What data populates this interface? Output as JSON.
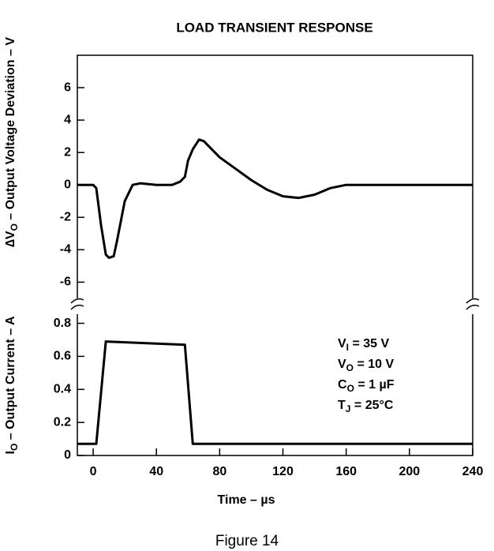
{
  "caption": "Figure 14",
  "chart_data": [
    {
      "type": "line",
      "title": "LOAD TRANSIENT RESPONSE",
      "y_label": [
        "∆V",
        "O",
        " – Output Voltage Deviation – V"
      ],
      "xlim": [
        -10,
        240
      ],
      "ylim": [
        -7.1,
        8
      ],
      "yticks": [
        6,
        4,
        2,
        0,
        -2,
        -4,
        -6
      ],
      "series": [
        {
          "color": "#000000",
          "x": [
            -10,
            0,
            2,
            5,
            8,
            10,
            13,
            15,
            20,
            25,
            30,
            40,
            50,
            55,
            58,
            60,
            63,
            67,
            70,
            75,
            80,
            90,
            100,
            110,
            120,
            130,
            140,
            145,
            150,
            160,
            240
          ],
          "values": [
            0,
            0,
            -0.2,
            -2.5,
            -4.3,
            -4.5,
            -4.4,
            -3.5,
            -1,
            0,
            0.1,
            0,
            0,
            0.2,
            0.5,
            1.5,
            2.2,
            2.8,
            2.7,
            2.2,
            1.7,
            1,
            0.3,
            -0.3,
            -0.7,
            -0.8,
            -0.6,
            -0.4,
            -0.2,
            0,
            0
          ]
        }
      ]
    },
    {
      "type": "line",
      "x_label": "Time – µs",
      "y_label": [
        "I",
        "O",
        " – Output Current – A"
      ],
      "xlim": [
        -10,
        240
      ],
      "xticks": [
        0,
        40,
        80,
        120,
        160,
        200,
        240
      ],
      "ylim": [
        0,
        0.86
      ],
      "yticks": [
        0,
        0.2,
        0.4,
        0.6,
        0.8
      ],
      "annotations": [
        [
          "V",
          "I",
          " = 35 V"
        ],
        [
          "V",
          "O",
          " = 10 V"
        ],
        [
          "C",
          "O",
          " = 1 µF"
        ],
        [
          "T",
          "J",
          " = 25°C"
        ]
      ],
      "series": [
        {
          "color": "#000000",
          "x": [
            -10,
            0,
            2,
            8,
            58,
            63,
            240
          ],
          "values": [
            0.07,
            0.07,
            0.07,
            0.69,
            0.67,
            0.07,
            0.07
          ]
        }
      ]
    }
  ]
}
